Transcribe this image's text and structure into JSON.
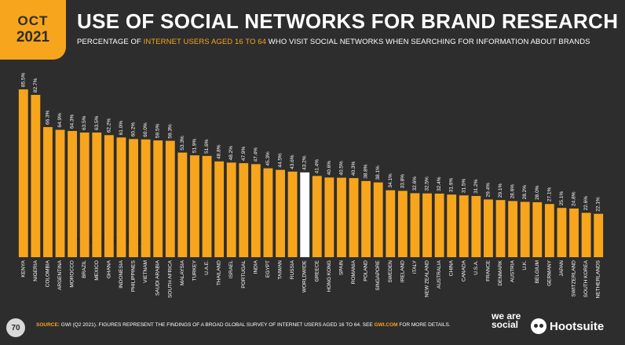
{
  "header": {
    "date_month": "OCT",
    "date_year": "2021",
    "title": "USE OF SOCIAL NETWORKS FOR BRAND RESEARCH",
    "subtitle_pre": "PERCENTAGE OF ",
    "subtitle_highlight": "INTERNET USERS AGED 16 TO 64",
    "subtitle_post": " WHO VISIT SOCIAL NETWORKS WHEN SEARCHING FOR INFORMATION ABOUT BRANDS"
  },
  "footer": {
    "page_number": "70",
    "source_label": "SOURCE:",
    "source_text": " GWI (Q2 2021). FIGURES REPRESENT THE FINDINGS OF A BROAD GLOBAL SURVEY OF INTERNET USERS AGED 16 TO 64. SEE ",
    "source_link": "GWI.COM",
    "source_post": " FOR MORE DETAILS.",
    "brand_we_are_social": "we are social",
    "brand_hootsuite": "Hootsuite"
  },
  "watermark": {
    "text": "Hootsuite"
  },
  "colors": {
    "background": "#2d2d2d",
    "bar": "#f7a51c",
    "highlight_bar": "#ffffff",
    "accent": "#f7a51c"
  },
  "chart_data": {
    "type": "bar",
    "categories": [
      "KENYA",
      "NIGERIA",
      "COLOMBIA",
      "ARGENTINA",
      "MOROCCO",
      "BRAZIL",
      "MEXICO",
      "GHANA",
      "INDONESIA",
      "PHILIPPINES",
      "VIETNAM",
      "SAUDI ARABIA",
      "SOUTH AFRICA",
      "MALAYSIA",
      "TURKEY",
      "U.A.E.",
      "THAILAND",
      "ISRAEL",
      "PORTUGAL",
      "INDIA",
      "EGYPT",
      "TAIWAN",
      "RUSSIA",
      "WORLDWIDE",
      "GREECE",
      "HONG KONG",
      "SPAIN",
      "ROMANIA",
      "POLAND",
      "SINGAPORE",
      "SWEDEN",
      "IRELAND",
      "ITALY",
      "NEW ZEALAND",
      "AUSTRALIA",
      "CHINA",
      "CANADA",
      "U.S.A.",
      "FRANCE",
      "DENMARK",
      "AUSTRIA",
      "U.K.",
      "BELGIUM",
      "GERMANY",
      "JAPAN",
      "SWITZERLAND",
      "SOUTH KOREA",
      "NETHERLANDS"
    ],
    "values": [
      85.5,
      82.7,
      66.3,
      64.9,
      64.3,
      63.5,
      63.5,
      62.2,
      61.0,
      60.2,
      60.0,
      59.5,
      59.3,
      53.3,
      51.9,
      51.6,
      48.8,
      48.2,
      47.9,
      47.4,
      45.3,
      44.5,
      43.6,
      43.2,
      41.4,
      40.6,
      40.5,
      40.3,
      38.8,
      38.1,
      34.1,
      33.8,
      32.6,
      32.5,
      32.4,
      31.9,
      31.5,
      31.2,
      29.4,
      29.1,
      28.6,
      28.2,
      28.0,
      27.1,
      25.1,
      24.8,
      22.6,
      22.1
    ],
    "value_labels": [
      "85.5%",
      "82.7%",
      "66.3%",
      "64.9%",
      "64.3%",
      "63.5%",
      "63.5%",
      "62.2%",
      "61.0%",
      "60.2%",
      "60.0%",
      "59.5%",
      "59.3%",
      "53.3%",
      "51.9%",
      "51.6%",
      "48.8%",
      "48.2%",
      "47.9%",
      "47.4%",
      "45.3%",
      "44.5%",
      "43.6%",
      "43.2%",
      "41.4%",
      "40.6%",
      "40.5%",
      "40.3%",
      "38.8%",
      "38.1%",
      "34.1%",
      "33.8%",
      "32.6%",
      "32.5%",
      "32.4%",
      "31.9%",
      "31.5%",
      "31.2%",
      "29.4%",
      "29.1%",
      "28.6%",
      "28.2%",
      "28.0%",
      "27.1%",
      "25.1%",
      "24.8%",
      "22.6%",
      "22.1%"
    ],
    "highlight_category": "WORLDWIDE",
    "ylim": [
      0,
      90
    ],
    "grid": false,
    "legend": "none"
  }
}
